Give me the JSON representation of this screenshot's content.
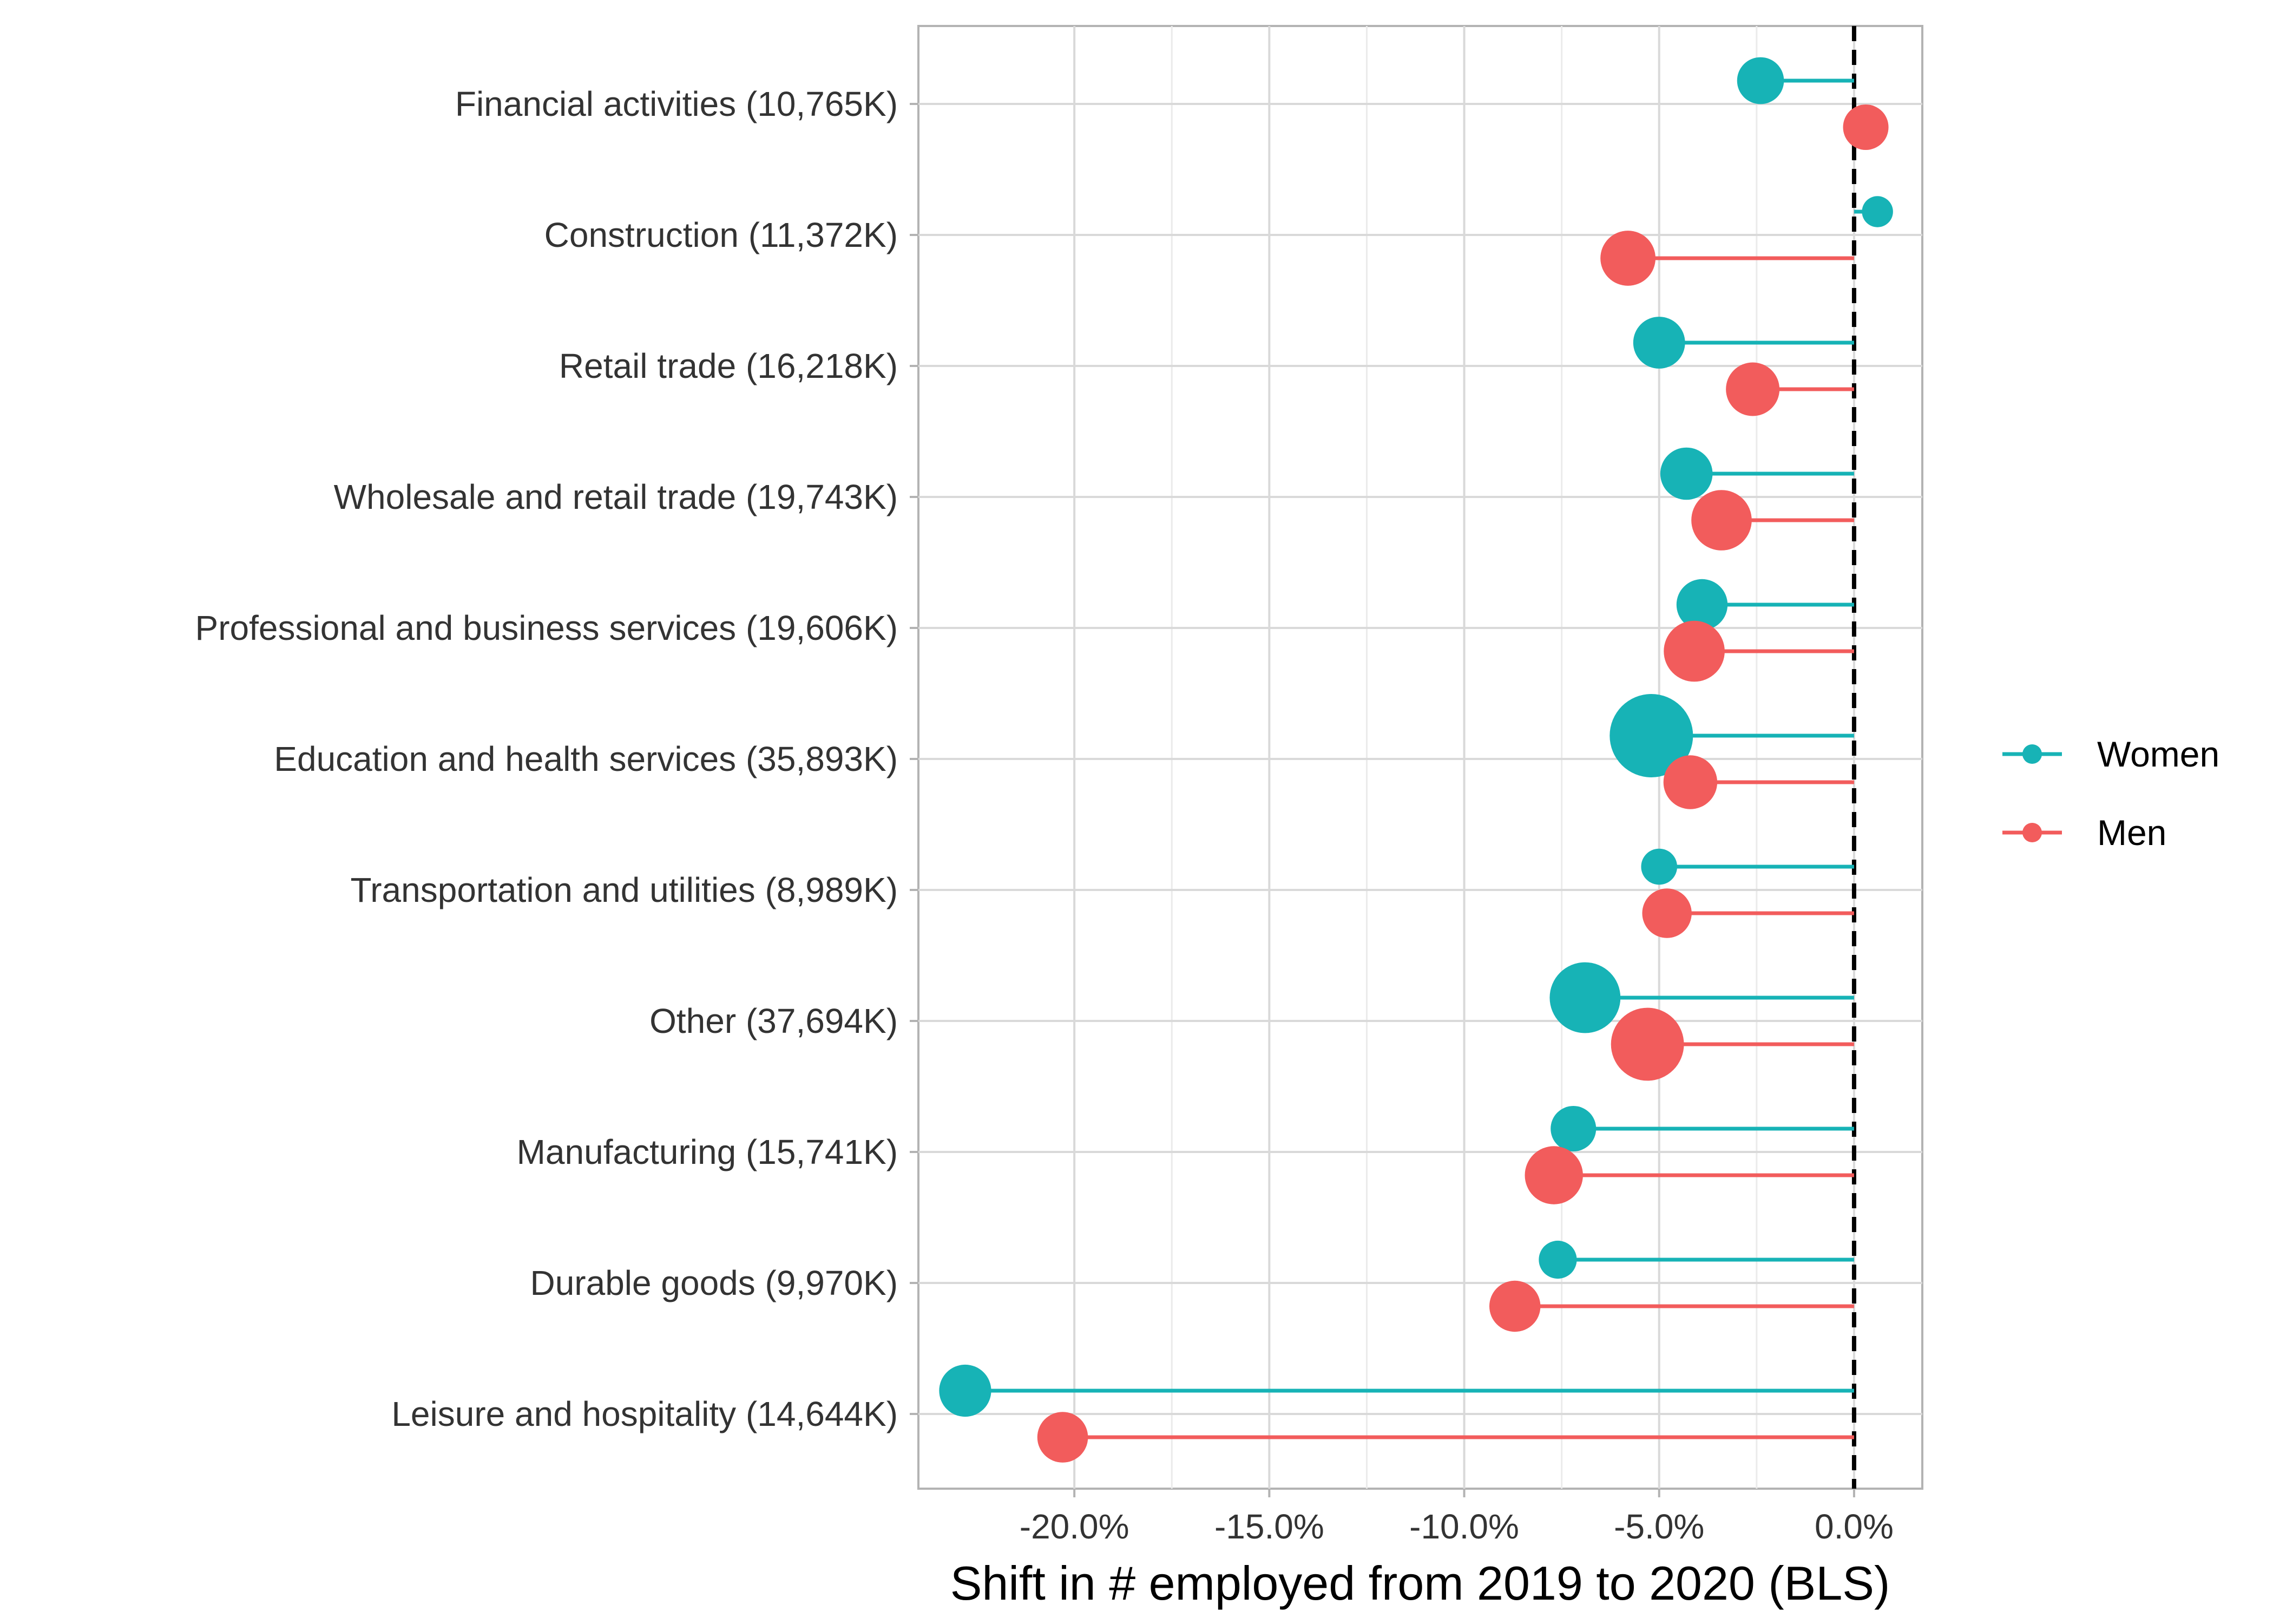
{
  "chart_data": {
    "type": "lollipop",
    "title": "",
    "xlabel": "Shift in # employed from 2019 to 2020 (BLS)",
    "ylabel": "",
    "xlim": [
      -0.24,
      0.0175
    ],
    "x_ticks": [
      -0.2,
      -0.15,
      -0.1,
      -0.05,
      0.0
    ],
    "x_tick_labels": [
      "-20.0%",
      "-15.0%",
      "-10.0%",
      "-5.0%",
      "0.0%"
    ],
    "reference_line": 0.0,
    "grid": true,
    "legend_position": "right",
    "categories": [
      "Financial activities (10,765K)",
      "Construction (11,372K)",
      "Retail trade (16,218K)",
      "Wholesale and retail trade (19,743K)",
      "Professional and business services (19,606K)",
      "Education and health services (35,893K)",
      "Transportation and utilities (8,989K)",
      "Other (37,694K)",
      "Manufacturing (15,741K)",
      "Durable goods (9,970K)",
      "Leisure and hospitality (14,644K)"
    ],
    "series": [
      {
        "name": "Women",
        "color": "#17b3b6",
        "values": [
          -0.024,
          0.006,
          -0.05,
          -0.043,
          -0.039,
          -0.052,
          -0.05,
          -0.069,
          -0.072,
          -0.076,
          -0.228
        ],
        "sizes_thousands": [
          5500,
          1200,
          7500,
          7700,
          7200,
          27500,
          2200,
          18000,
          5000,
          2700,
          7600
        ]
      },
      {
        "name": "Men",
        "color": "#f25c5c",
        "values": [
          0.003,
          -0.058,
          -0.026,
          -0.034,
          -0.041,
          -0.042,
          -0.048,
          -0.053,
          -0.077,
          -0.087,
          -0.203
        ],
        "sizes_thousands": [
          5000,
          9000,
          8300,
          11700,
          12000,
          8400,
          6500,
          19500,
          10500,
          7200,
          7000
        ]
      }
    ]
  }
}
